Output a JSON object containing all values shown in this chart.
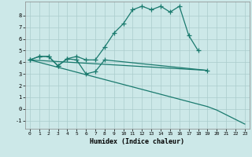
{
  "bg_color": "#cce8e8",
  "line_color": "#1a7a6e",
  "grid_color": "#aacccc",
  "xlabel": "Humidex (Indice chaleur)",
  "xlim": [
    -0.5,
    23.5
  ],
  "ylim": [
    -1.7,
    9.2
  ],
  "yticks": [
    -1,
    0,
    1,
    2,
    3,
    4,
    5,
    6,
    7,
    8
  ],
  "xticks": [
    0,
    1,
    2,
    3,
    4,
    5,
    6,
    7,
    8,
    9,
    10,
    11,
    12,
    13,
    14,
    15,
    16,
    17,
    18,
    19,
    20,
    21,
    22,
    23
  ],
  "line1_x": [
    0,
    1,
    2,
    3,
    4,
    5,
    6,
    7,
    8,
    9,
    10,
    11,
    12,
    13,
    14,
    15,
    16,
    17,
    18
  ],
  "line1_y": [
    4.2,
    4.5,
    4.5,
    3.7,
    4.3,
    4.5,
    4.2,
    4.2,
    5.3,
    6.5,
    7.3,
    8.5,
    8.8,
    8.5,
    8.8,
    8.3,
    8.8,
    6.3,
    5.0
  ],
  "line2_x": [
    0,
    1,
    2,
    3,
    4,
    5,
    6,
    7,
    8,
    19
  ],
  "line2_y": [
    4.2,
    4.5,
    4.5,
    3.7,
    4.3,
    4.2,
    3.0,
    3.2,
    4.2,
    3.3
  ],
  "line3_x": [
    0,
    19
  ],
  "line3_y": [
    4.2,
    3.3
  ],
  "line4_x": [
    0,
    19,
    20,
    21,
    22,
    23
  ],
  "line4_y": [
    4.2,
    0.2,
    -0.1,
    -0.5,
    -0.9,
    -1.3
  ]
}
